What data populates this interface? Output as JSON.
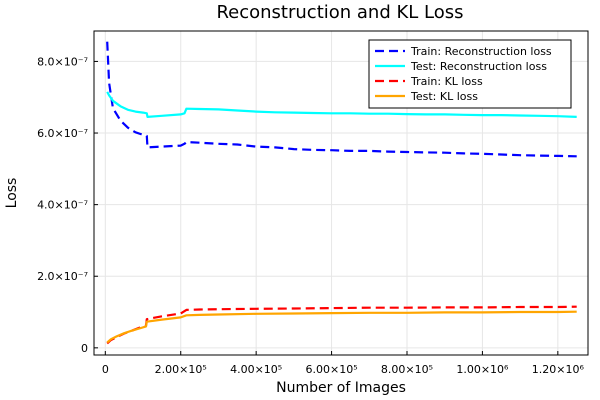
{
  "chart_data": {
    "type": "line",
    "title": "Reconstruction and KL Loss",
    "xlabel": "Number of Images",
    "ylabel": "Loss",
    "xlim": [
      -30000,
      1280000
    ],
    "ylim": [
      -2e-08,
      8.85e-07
    ],
    "grid": true,
    "legend_position": "top-right",
    "x_ticks": [
      {
        "value": 0,
        "label": "0"
      },
      {
        "value": 200000,
        "label": "2.00×10⁵"
      },
      {
        "value": 400000,
        "label": "4.00×10⁵"
      },
      {
        "value": 600000,
        "label": "6.00×10⁵"
      },
      {
        "value": 800000,
        "label": "8.00×10⁵"
      },
      {
        "value": 1000000,
        "label": "1.00×10⁶"
      },
      {
        "value": 1200000,
        "label": "1.20×10⁶"
      }
    ],
    "y_ticks": [
      {
        "value": 0,
        "label": "0"
      },
      {
        "value": 2e-07,
        "label": "2.0×10⁻⁷"
      },
      {
        "value": 4e-07,
        "label": "4.0×10⁻⁷"
      },
      {
        "value": 6e-07,
        "label": "6.0×10⁻⁷"
      },
      {
        "value": 8e-07,
        "label": "8.0×10⁻⁷"
      }
    ],
    "series": [
      {
        "name": "Train: Reconstruction loss",
        "color": "#0000ff",
        "dash": "dashed",
        "x": [
          5000,
          10000,
          20000,
          40000,
          60000,
          80000,
          100000,
          110000,
          112000,
          150000,
          200000,
          210000,
          215000,
          250000,
          300000,
          350000,
          400000,
          450000,
          500000,
          550000,
          600000,
          650000,
          700000,
          750000,
          800000,
          850000,
          900000,
          950000,
          1000000,
          1050000,
          1100000,
          1150000,
          1200000,
          1250000
        ],
        "y": [
          8.55e-07,
          7.4e-07,
          6.7e-07,
          6.35e-07,
          6.15e-07,
          6.02e-07,
          5.95e-07,
          5.92e-07,
          5.6e-07,
          5.62e-07,
          5.65e-07,
          5.7e-07,
          5.75e-07,
          5.73e-07,
          5.7e-07,
          5.68e-07,
          5.62e-07,
          5.6e-07,
          5.55e-07,
          5.53e-07,
          5.52e-07,
          5.5e-07,
          5.5e-07,
          5.48e-07,
          5.47e-07,
          5.46e-07,
          5.45e-07,
          5.43e-07,
          5.42e-07,
          5.4e-07,
          5.38e-07,
          5.37e-07,
          5.36e-07,
          5.35e-07
        ]
      },
      {
        "name": "Test: Reconstruction loss",
        "color": "#00ffff",
        "dash": "solid",
        "x": [
          5000,
          10000,
          20000,
          40000,
          60000,
          80000,
          100000,
          110000,
          112000,
          150000,
          200000,
          210000,
          215000,
          250000,
          300000,
          350000,
          400000,
          450000,
          500000,
          550000,
          600000,
          650000,
          700000,
          750000,
          800000,
          850000,
          900000,
          950000,
          1000000,
          1050000,
          1100000,
          1150000,
          1200000,
          1250000
        ],
        "y": [
          7.15e-07,
          7.05e-07,
          6.9e-07,
          6.75e-07,
          6.65e-07,
          6.6e-07,
          6.57e-07,
          6.55e-07,
          6.45e-07,
          6.48e-07,
          6.52e-07,
          6.55e-07,
          6.68e-07,
          6.67e-07,
          6.66e-07,
          6.63e-07,
          6.6e-07,
          6.58e-07,
          6.57e-07,
          6.56e-07,
          6.55e-07,
          6.55e-07,
          6.54e-07,
          6.54e-07,
          6.53e-07,
          6.52e-07,
          6.52e-07,
          6.51e-07,
          6.5e-07,
          6.5e-07,
          6.49e-07,
          6.48e-07,
          6.47e-07,
          6.45e-07
        ]
      },
      {
        "name": "Train: KL loss",
        "color": "#ff0000",
        "dash": "dashed",
        "x": [
          5000,
          15000,
          30000,
          50000,
          70000,
          90000,
          108000,
          110000,
          150000,
          200000,
          215000,
          250000,
          300000,
          400000,
          500000,
          600000,
          700000,
          800000,
          900000,
          1000000,
          1100000,
          1200000,
          1250000
        ],
        "y": [
          1.2e-08,
          2.2e-08,
          3e-08,
          4e-08,
          4.8e-08,
          5.6e-08,
          6.2e-08,
          8e-08,
          8.8e-08,
          9.6e-08,
          1.06e-07,
          1.07e-07,
          1.08e-07,
          1.09e-07,
          1.1e-07,
          1.11e-07,
          1.12e-07,
          1.12e-07,
          1.13e-07,
          1.13e-07,
          1.14e-07,
          1.14e-07,
          1.15e-07
        ]
      },
      {
        "name": "Test: KL loss",
        "color": "#ffa500",
        "dash": "solid",
        "x": [
          5000,
          15000,
          30000,
          50000,
          70000,
          90000,
          108000,
          110000,
          150000,
          200000,
          215000,
          250000,
          300000,
          400000,
          500000,
          600000,
          700000,
          800000,
          900000,
          1000000,
          1100000,
          1200000,
          1250000
        ],
        "y": [
          1.5e-08,
          2.4e-08,
          3.2e-08,
          4.1e-08,
          4.8e-08,
          5.4e-08,
          6e-08,
          7.3e-08,
          7.9e-08,
          8.5e-08,
          9.1e-08,
          9.2e-08,
          9.3e-08,
          9.5e-08,
          9.6e-08,
          9.7e-08,
          9.8e-08,
          9.8e-08,
          9.9e-08,
          9.9e-08,
          1e-07,
          1e-07,
          1.01e-07
        ]
      }
    ]
  }
}
